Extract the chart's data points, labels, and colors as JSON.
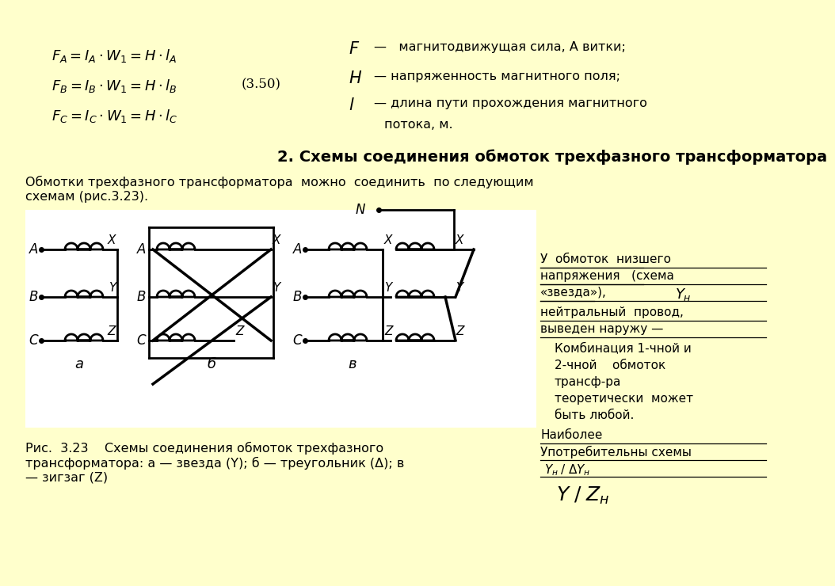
{
  "bg_color": "#ffffcc",
  "white_bg": "#ffffff",
  "black": "#000000",
  "title_section2": "2. Схемы соединения обмоток трехфазного трансформатора",
  "intro_text": "Обмотки трехфазного трансформатора  можно  соединить  по следующим\nсхемам (рис.3.23).",
  "caption_text": "Рис.  3.23    Схемы соединения обмоток трехфазного\nтрансформатора: а — звезда (Y); б — треугольник (Δ); в\n— зигзаг (Z)"
}
